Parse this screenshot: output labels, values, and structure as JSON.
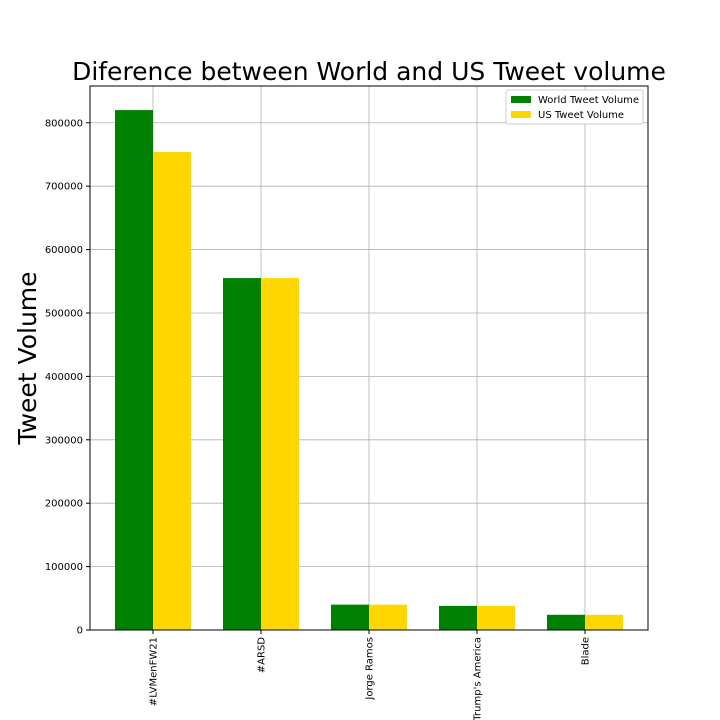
{
  "chart_data": {
    "type": "bar",
    "title": "Diference between World and US Tweet volume",
    "xlabel": "",
    "ylabel": "Tweet Volume",
    "categories": [
      "#LVMenFW21",
      "#ARSD",
      "Jorge Ramos",
      "Trump's America",
      "Blade"
    ],
    "series": [
      {
        "name": "World Tweet Volume",
        "color": "#008000",
        "values": [
          820000,
          555000,
          40000,
          38000,
          24000
        ]
      },
      {
        "name": "US Tweet Volume",
        "color": "#FFD700",
        "values": [
          754000,
          555000,
          40000,
          38000,
          24000
        ]
      }
    ],
    "ylim": [
      0,
      858000
    ],
    "yticks": [
      0,
      100000,
      200000,
      300000,
      400000,
      500000,
      600000,
      700000,
      800000
    ],
    "ytick_labels": [
      "0",
      "100000",
      "200000",
      "300000",
      "400000",
      "500000",
      "600000",
      "700000",
      "800000"
    ],
    "grid": true,
    "legend_position": "top-right"
  }
}
